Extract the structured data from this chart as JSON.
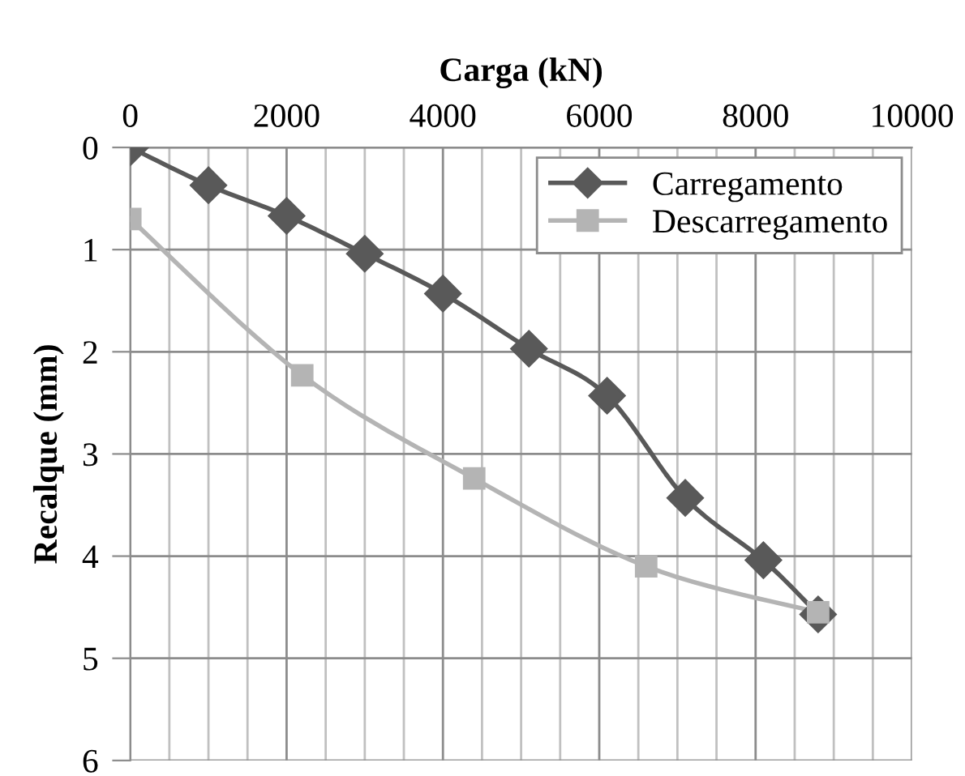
{
  "chart_data": {
    "type": "line",
    "xlabel": "Carga (kN)",
    "ylabel": "Recalque (mm)",
    "xlim": [
      0,
      10000
    ],
    "xticks": [
      0,
      2000,
      4000,
      6000,
      8000,
      10000
    ],
    "ylim": [
      6,
      0
    ],
    "yticks": [
      0,
      1,
      2,
      3,
      4,
      5,
      6
    ],
    "grid": true,
    "legend": "top right",
    "series": [
      {
        "name": "Carregamento",
        "color": "#595959",
        "marker": "diamond",
        "x": [
          0,
          1000,
          2000,
          3000,
          4000,
          5100,
          6100,
          7100,
          8100,
          8800
        ],
        "values": [
          0,
          0.37,
          0.67,
          1.04,
          1.43,
          1.97,
          2.43,
          3.43,
          4.04,
          4.57
        ]
      },
      {
        "name": "Descarregamento",
        "color": "#b4b4b4",
        "marker": "square",
        "x": [
          0,
          2200,
          4400,
          6600,
          8800
        ],
        "values": [
          0.7,
          2.23,
          3.24,
          4.1,
          4.55
        ]
      }
    ]
  }
}
